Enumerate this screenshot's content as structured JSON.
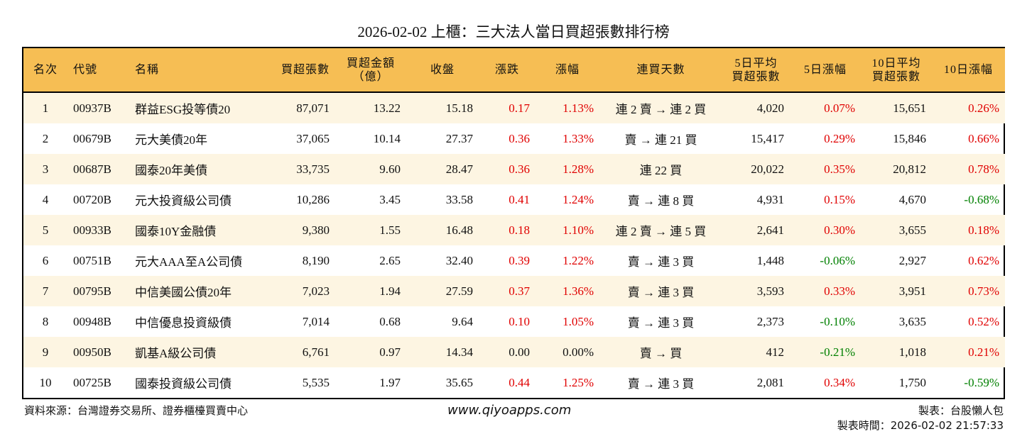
{
  "title": "2026-02-02 上櫃：三大法人當日買超張數排行榜",
  "colors": {
    "header_bg": "#f6be54",
    "row_alt_bg": "#fdf5e2",
    "up": "#e00000",
    "down": "#008000"
  },
  "headers": [
    "名次",
    "代號",
    "名稱",
    "買超張數",
    "買超金額\n（億）",
    "收盤",
    "漲跌",
    "漲幅",
    "連買天數",
    "5日平均\n買超張數",
    "5日漲幅",
    "10日平均\n買超張數",
    "10日漲幅"
  ],
  "rows": [
    [
      "1",
      "00937B",
      "群益ESG投等債20",
      "87,071",
      "13.22",
      "15.18",
      "0.17",
      "1.13%",
      "連 2 賣 → 連 2 買",
      "4,020",
      "0.07%",
      "15,651",
      "0.26%"
    ],
    [
      "2",
      "00679B",
      "元大美債20年",
      "37,065",
      "10.14",
      "27.37",
      "0.36",
      "1.33%",
      "賣 → 連 21 買",
      "15,417",
      "0.29%",
      "15,846",
      "0.66%"
    ],
    [
      "3",
      "00687B",
      "國泰20年美債",
      "33,735",
      "9.60",
      "28.47",
      "0.36",
      "1.28%",
      "連 22 買",
      "20,022",
      "0.35%",
      "20,812",
      "0.78%"
    ],
    [
      "4",
      "00720B",
      "元大投資級公司債",
      "10,286",
      "3.45",
      "33.58",
      "0.41",
      "1.24%",
      "賣 → 連 8 買",
      "4,931",
      "0.15%",
      "4,670",
      "-0.68%"
    ],
    [
      "5",
      "00933B",
      "國泰10Y金融債",
      "9,380",
      "1.55",
      "16.48",
      "0.18",
      "1.10%",
      "連 2 賣 → 連 5 買",
      "2,641",
      "0.30%",
      "3,655",
      "0.18%"
    ],
    [
      "6",
      "00751B",
      "元大AAA至A公司債",
      "8,190",
      "2.65",
      "32.40",
      "0.39",
      "1.22%",
      "賣 → 連 3 買",
      "1,448",
      "-0.06%",
      "2,927",
      "0.62%"
    ],
    [
      "7",
      "00795B",
      "中信美國公債20年",
      "7,023",
      "1.94",
      "27.59",
      "0.37",
      "1.36%",
      "賣 → 連 3 買",
      "3,593",
      "0.33%",
      "3,951",
      "0.73%"
    ],
    [
      "8",
      "00948B",
      "中信優息投資級債",
      "7,014",
      "0.68",
      "9.64",
      "0.10",
      "1.05%",
      "賣 → 連 3 買",
      "2,373",
      "-0.10%",
      "3,635",
      "0.52%"
    ],
    [
      "9",
      "00950B",
      "凱基A級公司債",
      "6,761",
      "0.97",
      "14.34",
      "0.00",
      "0.00%",
      "賣 → 買",
      "412",
      "-0.21%",
      "1,018",
      "0.21%"
    ],
    [
      "10",
      "00725B",
      "國泰投資級公司債",
      "5,535",
      "1.97",
      "35.65",
      "0.44",
      "1.25%",
      "賣 → 連 3 買",
      "2,081",
      "0.34%",
      "1,750",
      "-0.59%"
    ]
  ],
  "footer": {
    "source": "資料來源：台灣證券交易所、證券櫃檯買賣中心",
    "website": "www.qiyoapps.com",
    "maker": "製表：台股懶人包",
    "time": "製表時間：2026-02-02 21:57:33"
  }
}
